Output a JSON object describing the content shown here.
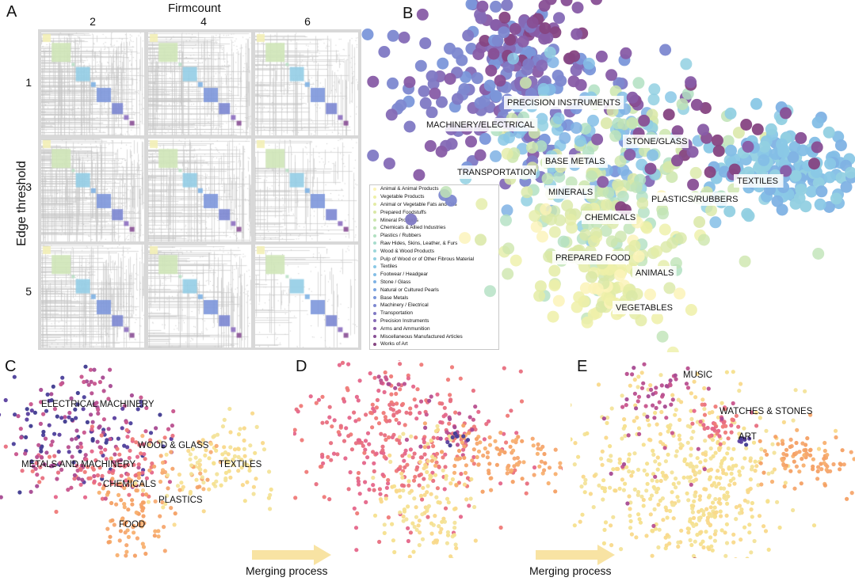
{
  "panels": {
    "a": "A",
    "b": "B",
    "c": "C",
    "d": "D",
    "e": "E"
  },
  "matrix": {
    "title": "Firmcount",
    "col_labels": [
      "2",
      "4",
      "6"
    ],
    "row_axis_label": "Edge threshold",
    "row_labels": [
      "1",
      "3",
      "5"
    ]
  },
  "legend": [
    {
      "label": "Animal & Animal Products",
      "color": "#fbf3b8"
    },
    {
      "label": "Vegetable Products",
      "color": "#eef0a8"
    },
    {
      "label": "Animal or Vegetable Fats and Oils",
      "color": "#e4eca6"
    },
    {
      "label": "Prepared Foodstuffs",
      "color": "#d9e8a6"
    },
    {
      "label": "Mineral Products",
      "color": "#cde6ad"
    },
    {
      "label": "Chemicals & Allied Industries",
      "color": "#bfe3b6"
    },
    {
      "label": "Plastics / Rubbers",
      "color": "#b2e0c2"
    },
    {
      "label": "Raw Hides, Skins, Leather, & Furs",
      "color": "#a7dccd"
    },
    {
      "label": "Wood & Wood Products",
      "color": "#9cd6d9"
    },
    {
      "label": "Pulp of Wood or of Other Fibrous Material",
      "color": "#92d0e2"
    },
    {
      "label": "Textiles",
      "color": "#8ac8e6"
    },
    {
      "label": "Footwear / Headgear",
      "color": "#84bee6"
    },
    {
      "label": "Stone / Glass",
      "color": "#7fb2e4"
    },
    {
      "label": "Natural or Cultured Pearls",
      "color": "#7ca5e0"
    },
    {
      "label": "Base Metals",
      "color": "#7b97da"
    },
    {
      "label": "Machinery / Electrical",
      "color": "#7d88d0"
    },
    {
      "label": "Transportation",
      "color": "#8079c4"
    },
    {
      "label": "Precision Instruments",
      "color": "#856ab6"
    },
    {
      "label": "Arms and Ammunition",
      "color": "#885ca6"
    },
    {
      "label": "Miscellaneous Manufactured Articles",
      "color": "#884f95"
    },
    {
      "label": "Works of Art",
      "color": "#864582"
    }
  ],
  "chart_data": [
    {
      "panel": "B",
      "type": "scatter",
      "annotations": [
        "PRECISION INSTRUMENTS",
        "MACHINERY/ELECTRICAL",
        "STONE/GLASS",
        "BASE METALS",
        "TRANSPORTATION",
        "TEXTILES",
        "MINERALS",
        "PLASTICS/RUBBERS",
        "CHEMICALS",
        "PREPARED FOOD",
        "ANIMALS",
        "VEGETABLES"
      ]
    },
    {
      "panel": "C",
      "type": "scatter",
      "annotations": [
        "ELECTRICAL MACHINERY",
        "WOOD & GLASS",
        "METALS AND MACHINERY",
        "TEXTILES",
        "CHEMICALS",
        "PLASTICS",
        "FOOD"
      ]
    },
    {
      "panel": "D",
      "type": "scatter",
      "annotations": []
    },
    {
      "panel": "E",
      "type": "scatter",
      "annotations": [
        "MUSIC",
        "WATCHES & STONES",
        "ART"
      ]
    }
  ],
  "arrows": {
    "caption_1": "Merging process",
    "caption_2": "Merging process",
    "color": "#f8e3a3"
  }
}
